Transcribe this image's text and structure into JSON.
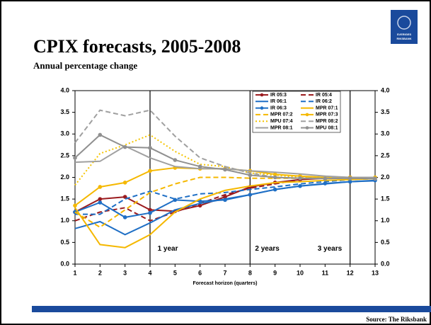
{
  "header": {
    "title": "CPIX forecasts, 2005-2008",
    "subtitle": "Annual percentage change",
    "logo_text": [
      "SVERIGES",
      "RIKSBANK"
    ]
  },
  "footer": {
    "source": "Source: The Riksbank"
  },
  "chart_data": {
    "type": "line",
    "x_label": "Forecast horizon (quarters)",
    "x": [
      1,
      2,
      3,
      4,
      5,
      6,
      7,
      8,
      9,
      10,
      11,
      12,
      13
    ],
    "xlim": [
      1,
      13
    ],
    "xticks": [
      1,
      2,
      3,
      4,
      5,
      6,
      7,
      8,
      9,
      10,
      11,
      12,
      13
    ],
    "ylim": [
      0,
      4
    ],
    "yticks": [
      {
        "value": 0,
        "label": "0.0"
      },
      0.5,
      {
        "value": 1,
        "label": "1.0"
      },
      1.5,
      {
        "value": 2,
        "label": "2.0"
      },
      2.5,
      {
        "value": 3,
        "label": "3.0"
      },
      3.5,
      {
        "value": 4,
        "label": "4.0"
      }
    ],
    "y2lim": [
      0,
      4
    ],
    "y2ticks": [
      {
        "value": 0,
        "label": "0.0"
      },
      0.5,
      {
        "value": 1,
        "label": "1.0"
      },
      1.5,
      {
        "value": 2,
        "label": "2.0"
      },
      2.5,
      {
        "value": 3,
        "label": "3.0"
      },
      3.5,
      {
        "value": 4,
        "label": "4.0"
      }
    ],
    "vlines": [
      4,
      8,
      12
    ],
    "annotations": [
      "1 year",
      "2 years",
      "3 years"
    ],
    "legend": "upper right",
    "series": [
      {
        "name": "IR 05:3",
        "color": "#9b1b1e",
        "dash": "solid",
        "marker": true,
        "values": [
          1.2,
          1.5,
          1.55,
          1.25,
          1.22,
          1.35,
          1.55,
          1.78,
          1.88,
          1.95,
          1.98,
          2.0,
          null
        ]
      },
      {
        "name": "IR 05:4",
        "color": "#9b1b1e",
        "dash": "dashed",
        "marker": false,
        "values": [
          1.0,
          1.2,
          1.3,
          1.0,
          1.2,
          1.4,
          1.6,
          1.75,
          1.85,
          1.95,
          2.0,
          2.0,
          null
        ]
      },
      {
        "name": "IR 06:1",
        "color": "#1f6fc5",
        "dash": "solid",
        "marker": false,
        "values": [
          0.82,
          0.98,
          0.68,
          0.95,
          1.25,
          1.4,
          1.5,
          1.6,
          1.72,
          1.8,
          1.85,
          1.9,
          1.92
        ]
      },
      {
        "name": "IR 06:2",
        "color": "#1f6fc5",
        "dash": "dashed",
        "marker": false,
        "values": [
          1.15,
          1.15,
          1.5,
          1.68,
          1.5,
          1.62,
          1.65,
          1.72,
          1.78,
          1.85,
          1.9,
          1.95,
          1.97
        ]
      },
      {
        "name": "IR 06:3",
        "color": "#1f6fc5",
        "dash": "solid",
        "marker": true,
        "values": [
          1.2,
          1.42,
          1.08,
          1.18,
          1.48,
          1.45,
          1.48,
          1.6,
          1.72,
          1.8,
          1.86,
          1.9,
          1.93
        ]
      },
      {
        "name": "MPR 07:1",
        "color": "#f5b800",
        "dash": "solid",
        "marker": false,
        "values": [
          1.3,
          0.45,
          0.38,
          0.68,
          1.2,
          1.5,
          1.7,
          1.8,
          1.88,
          1.9,
          1.93,
          1.95,
          1.97
        ]
      },
      {
        "name": "MPR 07:2",
        "color": "#f5b800",
        "dash": "dashed",
        "marker": false,
        "values": [
          1.2,
          0.85,
          1.25,
          1.65,
          1.85,
          2.0,
          2.0,
          1.98,
          1.98,
          1.98,
          2.0,
          2.0,
          2.0
        ]
      },
      {
        "name": "MPR 07:3",
        "color": "#f5b800",
        "dash": "solid",
        "marker": true,
        "values": [
          1.35,
          1.78,
          1.88,
          2.15,
          2.22,
          2.2,
          2.2,
          2.15,
          2.07,
          2.03,
          2.0,
          2.0,
          2.0
        ]
      },
      {
        "name": "MPU 07:4",
        "color": "#f5c400",
        "dash": "dotted",
        "marker": false,
        "values": [
          1.82,
          2.55,
          2.75,
          2.98,
          2.6,
          2.3,
          2.25,
          2.1,
          2.05,
          2.0,
          2.0,
          2.0,
          2.0
        ]
      },
      {
        "name": "MPR 08:2",
        "color": "#a0a0a0",
        "dash": "dashed",
        "marker": false,
        "values": [
          2.8,
          3.55,
          3.42,
          3.55,
          2.95,
          2.45,
          2.25,
          2.1,
          2.0,
          1.98,
          1.98,
          2.0,
          2.0
        ]
      },
      {
        "name": "MPR 08:1",
        "color": "#a0a0a0",
        "dash": "solid",
        "marker": false,
        "values": [
          2.35,
          2.37,
          2.72,
          2.45,
          2.25,
          2.2,
          2.2,
          2.15,
          2.12,
          2.08,
          2.03,
          2.0,
          2.0
        ]
      },
      {
        "name": "MPU 08:1",
        "color": "#909090",
        "dash": "solid",
        "marker": true,
        "values": [
          2.45,
          2.98,
          2.7,
          2.68,
          2.4,
          2.25,
          2.18,
          2.05,
          2.0,
          1.98,
          1.97,
          1.98,
          1.97
        ]
      }
    ]
  }
}
